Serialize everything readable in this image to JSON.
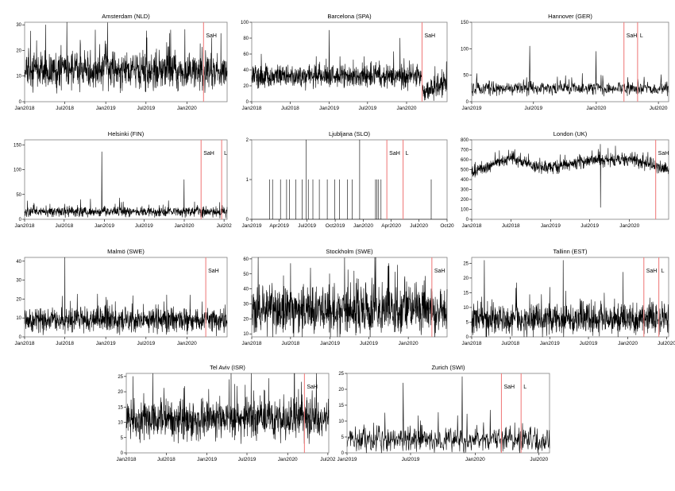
{
  "colors": {
    "series": "#000000",
    "marker": "#f08080",
    "frame": "#808080"
  },
  "chart_data": [
    {
      "type": "line",
      "title": "Amsterdam (NLD)",
      "x_ticks": [
        "Jan2018",
        "Jul2018",
        "Jan2019",
        "Jul2019",
        "Jan2020"
      ],
      "x_range": [
        "2018-01-01",
        "2020-06-30"
      ],
      "ylim": [
        0,
        31
      ],
      "y_ticks": [
        0,
        10,
        20,
        30
      ],
      "series": [
        {
          "mean": 12,
          "spread": 3.5,
          "peaks": [
            [
              "2018-07-10",
              31
            ],
            [
              "2018-11-15",
              28
            ],
            [
              "2019-10-20",
              28
            ]
          ]
        }
      ],
      "events": [
        {
          "label": "SaH",
          "date": "2020-03-16"
        }
      ]
    },
    {
      "type": "line",
      "title": "Barcelona (SPA)",
      "x_ticks": [
        "Jan2018",
        "Jul2018",
        "Jan2019",
        "Jul2019",
        "Jan2020"
      ],
      "x_range": [
        "2018-01-01",
        "2020-07-10"
      ],
      "ylim": [
        0,
        100
      ],
      "y_ticks": [
        0,
        20,
        40,
        60,
        80,
        100
      ],
      "series": [
        {
          "mean": 32,
          "spread": 7,
          "peaks": [
            [
              "2018-02-15",
              60
            ],
            [
              "2018-11-01",
              57
            ],
            [
              "2019-01-01",
              90
            ],
            [
              "2019-12-01",
              80
            ]
          ],
          "post_event_mean": 12
        }
      ],
      "events": [
        {
          "label": "SaH",
          "date": "2020-03-14"
        }
      ]
    },
    {
      "type": "line",
      "title": "Hannover (GER)",
      "x_ticks": [
        "Jan2019",
        "Jul2019",
        "Jan2020",
        "Jul2020"
      ],
      "x_range": [
        "2019-01-01",
        "2020-07-31"
      ],
      "ylim": [
        0,
        150
      ],
      "y_ticks": [
        0,
        50,
        100,
        150
      ],
      "series": [
        {
          "mean": 25,
          "spread": 6,
          "peaks": [
            [
              "2019-06-20",
              105
            ],
            [
              "2019-12-31",
              95
            ]
          ]
        }
      ],
      "events": [
        {
          "label": "SaH",
          "date": "2020-03-22"
        },
        {
          "label": "L",
          "date": "2020-05-01"
        }
      ]
    },
    {
      "type": "line",
      "title": "Helsinki (FIN)",
      "x_ticks": [
        "Jan2018",
        "Jul2018",
        "Jan2019",
        "Jul2019",
        "Jan2020",
        "Jul202"
      ],
      "x_range": [
        "2018-01-01",
        "2020-07-15"
      ],
      "ylim": [
        0,
        160
      ],
      "y_ticks": [
        0,
        50,
        100,
        150
      ],
      "series": [
        {
          "mean": 15,
          "spread": 5,
          "peaks": [
            [
              "2018-12-20",
              136
            ],
            [
              "2019-12-31",
              80
            ]
          ]
        }
      ],
      "events": [
        {
          "label": "SaH",
          "date": "2020-03-18"
        },
        {
          "label": "L",
          "date": "2020-06-20"
        }
      ]
    },
    {
      "type": "line",
      "title": "Ljubljana (SLO)",
      "x_ticks": [
        "Jan2019",
        "Apr2019",
        "Jul2019",
        "Oct2019",
        "Jan2020",
        "Apr2020",
        "Jul2020",
        "Oct20"
      ],
      "x_range": [
        "2019-01-01",
        "2020-10-01"
      ],
      "ylim": [
        0,
        2
      ],
      "y_ticks": [
        0,
        1,
        2
      ],
      "series": [
        {
          "baseline": 0,
          "spikes_of_1": [
            "2019-03-01",
            "2019-03-10",
            "2019-04-05",
            "2019-04-25",
            "2019-05-05",
            "2019-05-25",
            "2019-06-15",
            "2019-07-05",
            "2019-07-20",
            "2019-08-10",
            "2019-09-05",
            "2019-09-30",
            "2019-10-15",
            "2019-11-10",
            "2019-11-25",
            "2020-02-10",
            "2020-02-15",
            "2020-02-20",
            "2020-02-28",
            "2020-08-10"
          ],
          "spikes_of_2": [
            "2019-06-28",
            "2019-12-20"
          ]
        }
      ],
      "events": [
        {
          "label": "SaH",
          "date": "2020-03-18"
        },
        {
          "label": "L",
          "date": "2020-05-10"
        }
      ]
    },
    {
      "type": "line",
      "title": "London (UK)",
      "x_ticks": [
        "Jan2018",
        "Jul2018",
        "Jan2019",
        "Jul2019",
        "Jan2020"
      ],
      "x_range": [
        "2018-01-01",
        "2020-06-30"
      ],
      "ylim": [
        0,
        800
      ],
      "y_ticks": [
        0,
        100,
        200,
        300,
        400,
        500,
        600,
        700,
        800
      ],
      "series": [
        {
          "trend": [
            [
              "2018-01-01",
              470
            ],
            [
              "2018-07-01",
              620
            ],
            [
              "2018-11-01",
              520
            ],
            [
              "2019-01-01",
              520
            ],
            [
              "2019-07-01",
              590
            ],
            [
              "2020-01-01",
              600
            ],
            [
              "2020-03-20",
              560
            ],
            [
              "2020-06-30",
              500
            ]
          ],
          "spread": 30,
          "dips": [
            [
              "2019-08-20",
              120
            ]
          ]
        }
      ],
      "events": [
        {
          "label": "SaH",
          "date": "2020-05-01"
        }
      ]
    },
    {
      "type": "line",
      "title": "Malmö (SWE)",
      "x_ticks": [
        "Jan2018",
        "Jul2018",
        "Jan2019",
        "Jul2019",
        "Jan2020"
      ],
      "x_range": [
        "2018-01-01",
        "2020-06-30"
      ],
      "ylim": [
        0,
        42
      ],
      "y_ticks": [
        0,
        10,
        20,
        30,
        40
      ],
      "series": [
        {
          "mean": 9,
          "spread": 3,
          "peaks": [
            [
              "2018-07-01",
              42
            ]
          ]
        }
      ],
      "events": [
        {
          "label": "SaH",
          "date": "2020-03-26"
        }
      ]
    },
    {
      "type": "line",
      "title": "Stockholm (SWE)",
      "x_ticks": [
        "Jan2018",
        "Jul2018",
        "Jan2019",
        "Jul2019",
        "Jan2020"
      ],
      "x_range": [
        "2018-01-01",
        "2020-06-30"
      ],
      "ylim": [
        8,
        61
      ],
      "y_ticks": [
        10,
        20,
        30,
        40,
        50,
        60
      ],
      "series": [
        {
          "mean": 26,
          "spread": 8,
          "peaks": [
            [
              "2018-07-01",
              57
            ],
            [
              "2019-10-01",
              57
            ]
          ]
        }
      ],
      "events": [
        {
          "label": "SaH",
          "date": "2020-04-20"
        }
      ]
    },
    {
      "type": "line",
      "title": "Tallinn (EST)",
      "x_ticks": [
        "Jan2018",
        "Jul2018",
        "Jan2019",
        "Jul2019",
        "Jan2020",
        "Jul2020"
      ],
      "x_range": [
        "2018-01-01",
        "2020-07-10"
      ],
      "ylim": [
        0,
        27
      ],
      "y_ticks": [
        0,
        5,
        10,
        15,
        20,
        25
      ],
      "series": [
        {
          "mean": 6,
          "spread": 2.5,
          "peaks": [
            [
              "2018-03-01",
              26
            ],
            [
              "2019-03-05",
              26
            ],
            [
              "2019-12-10",
              22
            ]
          ]
        }
      ],
      "events": [
        {
          "label": "SaH",
          "date": "2020-03-16"
        },
        {
          "label": "L",
          "date": "2020-05-25"
        }
      ]
    },
    {
      "type": "line",
      "title": "Tel Aviv (ISR)",
      "x_ticks": [
        "Jan2018",
        "Jul2018",
        "Jan2019",
        "Jul2019",
        "Jan2020",
        "Jul202"
      ],
      "x_range": [
        "2018-01-01",
        "2020-07-05"
      ],
      "ylim": [
        0,
        26
      ],
      "y_ticks": [
        0,
        5,
        10,
        15,
        20,
        25
      ],
      "series": [
        {
          "mean": 11,
          "spread": 3,
          "peaks": [
            [
              "2018-02-01",
              25
            ],
            [
              "2018-05-01",
              26
            ],
            [
              "2019-04-20",
              26
            ],
            [
              "2020-02-01",
              26
            ]
          ]
        }
      ],
      "events": [
        {
          "label": "SaH",
          "date": "2020-03-17"
        }
      ]
    },
    {
      "type": "line",
      "title": "Zurich (SWI)",
      "x_ticks": [
        "Jan2019",
        "Jul2019",
        "Jan2020",
        "Jul2020"
      ],
      "x_range": [
        "2019-01-01",
        "2020-07-31"
      ],
      "ylim": [
        0,
        25
      ],
      "y_ticks": [
        0,
        5,
        10,
        15,
        20,
        25
      ],
      "series": [
        {
          "mean": 4,
          "spread": 2,
          "peaks": [
            [
              "2019-06-10",
              22
            ],
            [
              "2019-11-25",
              24
            ]
          ]
        }
      ],
      "events": [
        {
          "label": "SaH",
          "date": "2020-03-16"
        },
        {
          "label": "L",
          "date": "2020-05-11"
        }
      ]
    }
  ]
}
